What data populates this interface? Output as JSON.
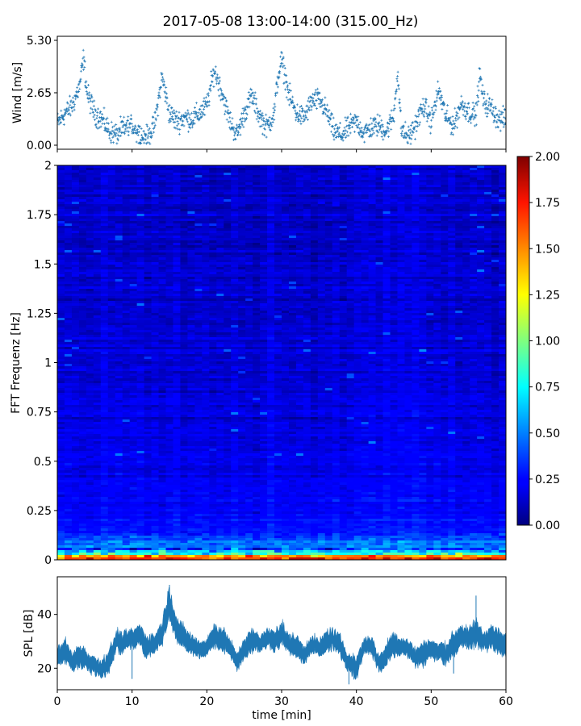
{
  "chart_data": [
    {
      "type": "scatter",
      "title": "2017-05-08 13:00-14:00 (315.00_Hz)",
      "ylabel": "Wind [m/s]",
      "xlim": [
        0,
        60
      ],
      "ylim": [
        0,
        5.3
      ],
      "yticks": [
        "0.00",
        "2.65",
        "5.30"
      ],
      "marker": "+",
      "color": "#1f77b4",
      "series": [
        {
          "x": [
            0,
            1,
            2,
            3,
            3.5,
            4,
            5,
            6,
            7,
            8,
            9,
            10,
            11,
            12,
            13,
            13.5,
            14,
            15,
            16,
            17,
            18,
            19,
            20,
            21,
            22,
            23,
            24,
            25,
            26,
            27,
            28,
            29,
            29.5,
            30,
            31,
            32,
            33,
            34,
            35,
            36,
            37,
            38,
            39,
            40,
            41,
            42,
            43,
            44,
            45,
            45.5,
            46,
            47,
            48,
            49,
            50,
            51,
            52,
            53,
            54,
            55,
            56,
            56.5,
            57,
            58,
            59,
            60
          ],
          "y": [
            1.1,
            1.6,
            2.0,
            3.0,
            4.4,
            2.6,
            1.6,
            1.3,
            0.7,
            0.5,
            0.9,
            1.0,
            0.6,
            0.4,
            1.0,
            2.2,
            3.5,
            1.6,
            1.2,
            1.4,
            1.3,
            1.6,
            2.0,
            3.8,
            2.7,
            1.3,
            0.5,
            1.6,
            2.5,
            1.5,
            0.9,
            1.6,
            3.4,
            4.3,
            2.5,
            1.6,
            1.4,
            2.2,
            2.3,
            1.7,
            0.7,
            0.5,
            0.9,
            1.2,
            0.6,
            0.9,
            1.0,
            0.7,
            1.5,
            3.8,
            0.8,
            0.4,
            1.1,
            2.0,
            1.2,
            2.8,
            1.4,
            1.0,
            2.1,
            1.7,
            1.5,
            3.6,
            2.2,
            1.9,
            1.3,
            1.3
          ]
        }
      ]
    },
    {
      "type": "heatmap",
      "ylabel": "FFT Frequenz [Hz]",
      "xlim": [
        0,
        60
      ],
      "ylim": [
        0,
        2
      ],
      "yticks": [
        "0",
        "0.25",
        "0.5",
        "0.75",
        "1",
        "1.25",
        "1.5",
        "1.75",
        "2"
      ],
      "colormap": "jet",
      "colorbar": {
        "range": [
          0,
          2
        ],
        "ticks": [
          "0.00",
          "0.25",
          "0.50",
          "0.75",
          "1.00",
          "1.25",
          "1.50",
          "1.75",
          "2.00"
        ]
      }
    },
    {
      "type": "area",
      "ylabel": "SPL [dB]",
      "xlabel": "time [min]",
      "xlim": [
        0,
        60
      ],
      "ylim": [
        12,
        54
      ],
      "xticks": [
        "0",
        "10",
        "20",
        "30",
        "40",
        "50",
        "60"
      ],
      "yticks": [
        "20",
        "40"
      ],
      "color": "#1f77b4",
      "series": [
        {
          "x": [
            0,
            1,
            2,
            3,
            4,
            5,
            6,
            7,
            8,
            8.5,
            9,
            10,
            11,
            12,
            13,
            14,
            15,
            16,
            17,
            18,
            19,
            20,
            21,
            22,
            23,
            24,
            25,
            26,
            27,
            28,
            29,
            30,
            31,
            32,
            33,
            34,
            35,
            36,
            37,
            38,
            39,
            40,
            41,
            42,
            43,
            44,
            45,
            46,
            47,
            48,
            49,
            50,
            51,
            52,
            53,
            54,
            55,
            56,
            57,
            58,
            59,
            60
          ],
          "y": [
            24,
            27,
            22,
            25,
            23,
            21,
            20,
            23,
            31,
            29,
            30,
            31,
            32,
            28,
            29,
            33,
            44,
            34,
            31,
            29,
            27,
            28,
            32,
            31,
            28,
            22,
            27,
            30,
            29,
            31,
            30,
            33,
            29,
            28,
            25,
            29,
            27,
            30,
            31,
            27,
            22,
            20,
            28,
            29,
            21,
            25,
            29,
            28,
            27,
            24,
            26,
            27,
            26,
            25,
            29,
            32,
            31,
            33,
            30,
            32,
            30,
            28
          ],
          "spread": [
            3,
            4,
            3,
            4,
            3,
            3,
            3,
            4,
            3,
            4,
            3,
            3,
            4,
            4,
            3,
            4,
            6,
            4,
            4,
            3,
            3,
            3,
            4,
            4,
            3,
            3,
            4,
            4,
            3,
            3,
            4,
            4,
            3,
            4,
            3,
            3,
            3,
            4,
            3,
            4,
            3,
            4,
            3,
            3,
            3,
            4,
            4,
            3,
            3,
            3,
            4,
            3,
            3,
            4,
            4,
            4,
            3,
            5,
            3,
            4,
            4,
            4
          ]
        }
      ]
    }
  ]
}
